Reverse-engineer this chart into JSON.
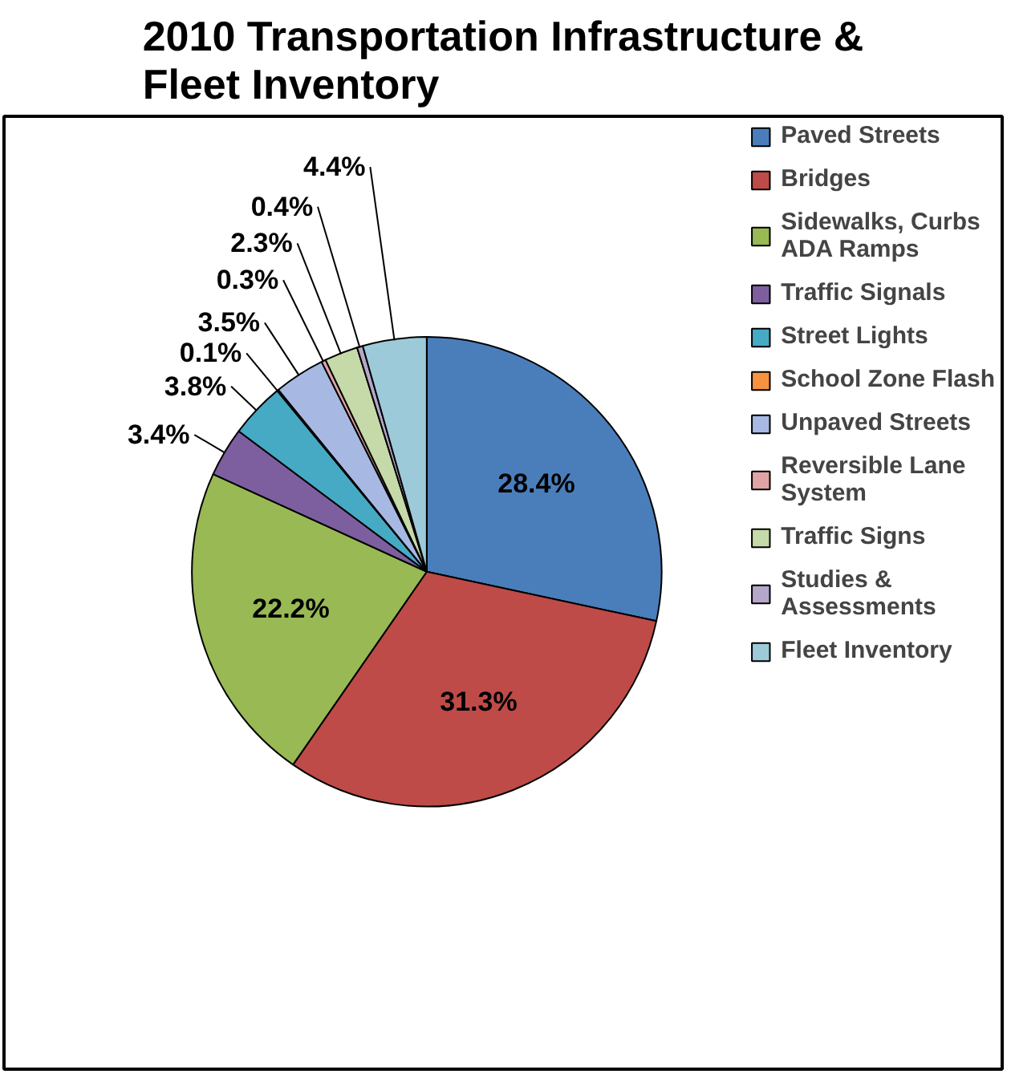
{
  "chart_data": {
    "type": "pie",
    "title": "2010 Transportation Infrastructure & Fleet Inventory",
    "categories": [
      "Paved Streets",
      "Bridges",
      "Sidewalks, Curbs ADA Ramps",
      "Traffic Signals",
      "Street Lights",
      "School Zone Flash",
      "Unpaved Streets",
      "Reversible Lane System",
      "Traffic Signs",
      "Studies & Assessments",
      "Fleet Inventory"
    ],
    "values": [
      28.4,
      31.3,
      22.2,
      3.4,
      3.8,
      0.1,
      3.5,
      0.3,
      2.3,
      0.4,
      4.4
    ],
    "colors": [
      "#4a7ebb",
      "#be4b48",
      "#98b954",
      "#7d5fa0",
      "#46aac4",
      "#f69240",
      "#a7b9e3",
      "#dfa4a3",
      "#c6d9a8",
      "#b5a7ca",
      "#9dcad9"
    ],
    "value_labels": [
      "28.4%",
      "31.3%",
      "22.2%",
      "3.4%",
      "3.8%",
      "0.1%",
      "3.5%",
      "0.3%",
      "2.3%",
      "0.4%",
      "4.4%"
    ],
    "legend": "right"
  }
}
